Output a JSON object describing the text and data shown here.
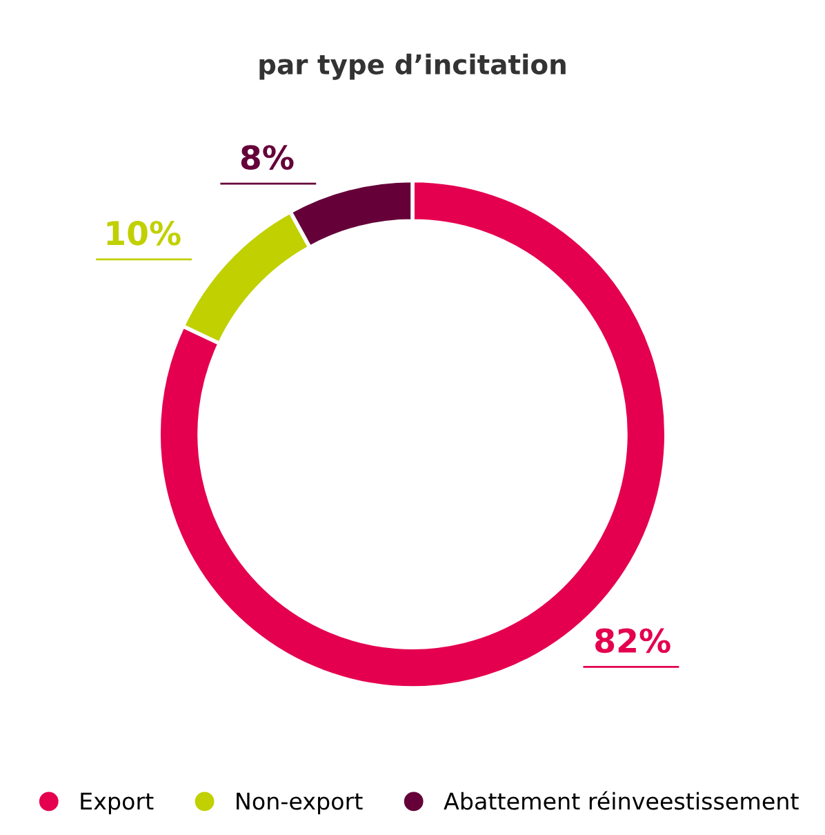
{
  "chart_data": {
    "type": "donut",
    "title": "par type d’incitation",
    "categories": [
      "Export",
      "Non-export",
      "Abattement réinveestissement"
    ],
    "values": [
      82,
      10,
      8
    ],
    "colors": [
      "#e4004f",
      "#c0d000",
      "#650039"
    ],
    "value_labels": [
      "82%",
      "10%",
      "8%"
    ],
    "legend": "bottom"
  }
}
